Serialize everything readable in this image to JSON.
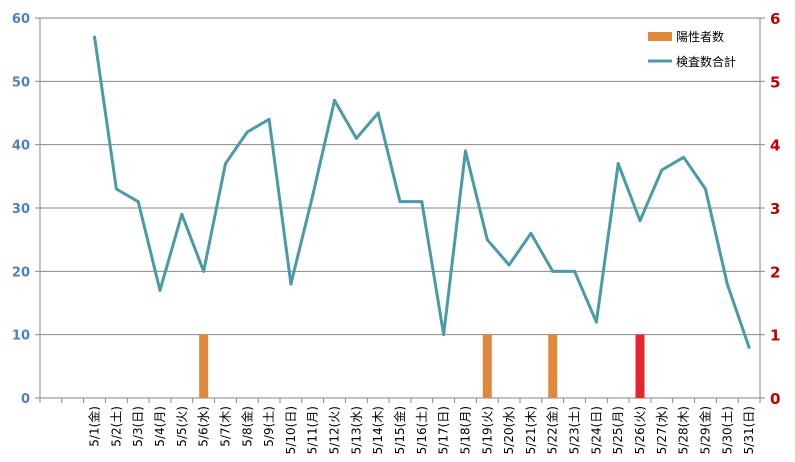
{
  "chart_data": {
    "type": "bar+line",
    "title": "",
    "categories": [
      "",
      "",
      "5/1(金)",
      "5/2(土)",
      "5/3(日)",
      "5/4(月)",
      "5/5(火)",
      "5/6(水)",
      "5/7(木)",
      "5/8(金)",
      "5/9(土)",
      "5/10(日)",
      "5/11(月)",
      "5/12(火)",
      "5/13(水)",
      "5/14(木)",
      "5/15(金)",
      "5/16(土)",
      "5/17(日)",
      "5/18(月)",
      "5/19(火)",
      "5/20(水)",
      "5/21(木)",
      "5/22(金)",
      "5/23(土)",
      "5/24(日)",
      "5/25(月)",
      "5/26(火)",
      "5/27(水)",
      "5/28(木)",
      "5/29(金)",
      "5/30(土)",
      "5/31(日)"
    ],
    "series": [
      {
        "name": "陽性者数",
        "type": "bar",
        "axis": "right",
        "color": "#e0883c",
        "values": [
          null,
          null,
          0,
          0,
          0,
          0,
          0,
          1,
          0,
          0,
          0,
          0,
          0,
          0,
          0,
          0,
          0,
          0,
          0,
          0,
          1,
          0,
          0,
          1,
          0,
          0,
          0,
          1,
          0,
          0,
          0,
          0,
          0
        ],
        "highlight": {
          "index": 27,
          "color": "#e8232a"
        }
      },
      {
        "name": "検査数合計",
        "type": "line",
        "axis": "left",
        "color": "#4a9aaa",
        "values": [
          null,
          null,
          57,
          33,
          31,
          17,
          29,
          20,
          37,
          42,
          44,
          18,
          32,
          47,
          41,
          45,
          31,
          31,
          10,
          39,
          25,
          21,
          26,
          20,
          20,
          12,
          37,
          28,
          36,
          38,
          33,
          18,
          8
        ]
      }
    ],
    "y_left": {
      "min": 0,
      "max": 60,
      "ticks": [
        0,
        10,
        20,
        30,
        40,
        50,
        60
      ],
      "color": "#4f81bd"
    },
    "y_right": {
      "min": 0,
      "max": 6,
      "ticks": [
        0,
        1,
        2,
        3,
        4,
        5,
        6
      ],
      "color": "#c00000"
    },
    "grid": true,
    "legend_position": "top-right"
  }
}
